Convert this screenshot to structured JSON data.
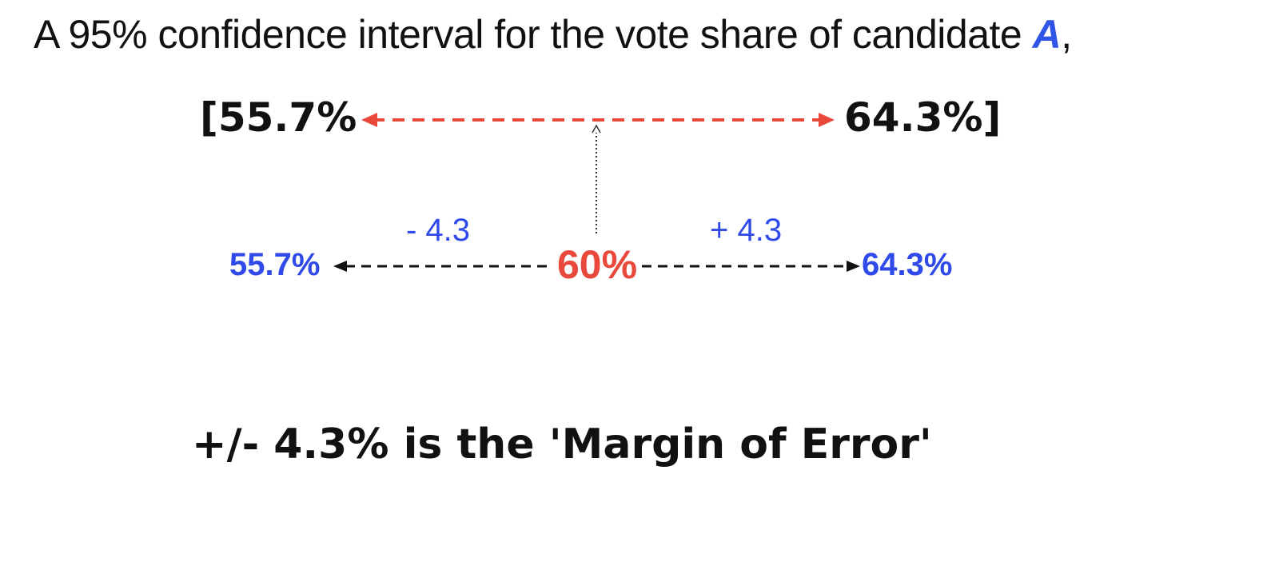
{
  "heading": {
    "text": "A 95% confidence interval for the vote share of candidate",
    "candidate": "A",
    "trailing": ","
  },
  "interval": {
    "lower": "[55.7%",
    "upper": "64.3%]"
  },
  "point_estimate": {
    "center": "60%",
    "lower": "55.7%",
    "upper": "64.3%",
    "minus_offset": "- 4.3",
    "plus_offset": "+ 4.3"
  },
  "margin_of_error": {
    "text": "+/- 4.3% is the 'Margin of Error'"
  },
  "colors": {
    "red": "#e8493a",
    "blue": "#2f4ae8",
    "black": "#111111"
  }
}
